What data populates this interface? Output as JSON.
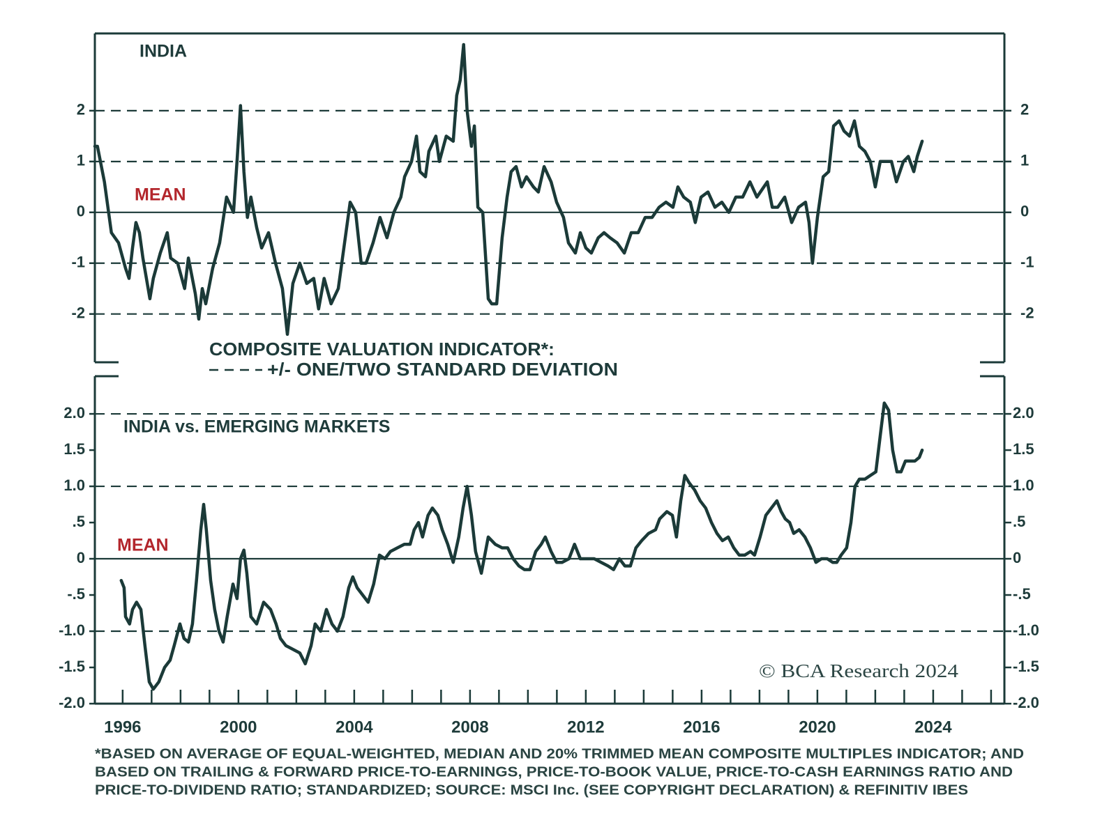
{
  "chart_data": [
    {
      "type": "line",
      "title": "INDIA",
      "mean_label": "MEAN",
      "mean_line": 0,
      "mean_color": "#b3262c",
      "color": "#1b3a38",
      "xlim": [
        1995.04,
        2026.46
      ],
      "ylim": [
        -2.95,
        3.52
      ],
      "yticks": [
        2,
        1,
        0,
        -1,
        -2
      ],
      "std_lines": [
        2,
        1,
        -1,
        -2
      ],
      "x": [
        1995.04,
        1995.13,
        1995.37,
        1995.49,
        1995.61,
        1995.86,
        1996.1,
        1996.22,
        1996.34,
        1996.46,
        1996.58,
        1996.7,
        1996.94,
        1997.06,
        1997.3,
        1997.54,
        1997.66,
        1997.9,
        1998.14,
        1998.27,
        1998.51,
        1998.63,
        1998.75,
        1998.87,
        1999.11,
        1999.35,
        1999.59,
        1999.83,
        1999.95,
        2000.07,
        2000.19,
        2000.31,
        2000.43,
        2000.63,
        2000.8,
        2001.04,
        2001.28,
        2001.52,
        2001.69,
        2001.88,
        2002.12,
        2002.36,
        2002.6,
        2002.77,
        2002.96,
        2003.2,
        2003.45,
        2003.69,
        2003.86,
        2004.05,
        2004.24,
        2004.41,
        2004.65,
        2004.89,
        2005.13,
        2005.37,
        2005.61,
        2005.74,
        2005.98,
        2006.15,
        2006.27,
        2006.46,
        2006.58,
        2006.82,
        2006.94,
        2007.18,
        2007.42,
        2007.54,
        2007.66,
        2007.78,
        2007.9,
        2008.05,
        2008.15,
        2008.27,
        2008.44,
        2008.63,
        2008.75,
        2008.92,
        2009.11,
        2009.28,
        2009.42,
        2009.59,
        2009.78,
        2009.95,
        2010.19,
        2010.36,
        2010.56,
        2010.8,
        2010.99,
        2011.23,
        2011.4,
        2011.64,
        2011.81,
        2012.0,
        2012.19,
        2012.43,
        2012.63,
        2012.84,
        2013.08,
        2013.33,
        2013.57,
        2013.81,
        2014.05,
        2014.29,
        2014.53,
        2014.77,
        2015.01,
        2015.18,
        2015.38,
        2015.61,
        2015.78,
        2015.98,
        2016.22,
        2016.46,
        2016.7,
        2016.94,
        2017.18,
        2017.42,
        2017.67,
        2017.91,
        2018.15,
        2018.27,
        2018.44,
        2018.63,
        2018.87,
        2019.11,
        2019.35,
        2019.59,
        2019.71,
        2019.83,
        2020.0,
        2020.2,
        2020.39,
        2020.56,
        2020.75,
        2020.92,
        2021.11,
        2021.28,
        2021.45,
        2021.64,
        2021.83,
        2022.0,
        2022.17,
        2022.37,
        2022.56,
        2022.73,
        2022.97,
        2023.14,
        2023.33,
        2023.45,
        2023.62
      ],
      "values": [
        1.3,
        1.3,
        0.6,
        0.1,
        -0.4,
        -0.6,
        -1.1,
        -1.3,
        -0.7,
        -0.2,
        -0.4,
        -0.9,
        -1.7,
        -1.3,
        -0.8,
        -0.4,
        -0.9,
        -1.0,
        -1.5,
        -0.9,
        -1.6,
        -2.1,
        -1.5,
        -1.8,
        -1.1,
        -0.6,
        0.3,
        0.0,
        1.0,
        2.1,
        0.8,
        -0.1,
        0.3,
        -0.3,
        -0.7,
        -0.4,
        -1.0,
        -1.5,
        -2.4,
        -1.4,
        -1.0,
        -1.4,
        -1.3,
        -1.9,
        -1.3,
        -1.8,
        -1.5,
        -0.5,
        0.2,
        0.0,
        -1.0,
        -1.0,
        -0.6,
        -0.1,
        -0.5,
        0.0,
        0.3,
        0.7,
        1.0,
        1.5,
        0.8,
        0.7,
        1.2,
        1.5,
        1.0,
        1.5,
        1.4,
        2.3,
        2.6,
        3.3,
        2.0,
        1.3,
        1.7,
        0.1,
        0.0,
        -1.7,
        -1.8,
        -1.8,
        -0.5,
        0.3,
        0.8,
        0.9,
        0.5,
        0.7,
        0.5,
        0.4,
        0.9,
        0.6,
        0.2,
        -0.1,
        -0.6,
        -0.8,
        -0.4,
        -0.7,
        -0.8,
        -0.5,
        -0.4,
        -0.5,
        -0.6,
        -0.8,
        -0.4,
        -0.4,
        -0.1,
        -0.1,
        0.1,
        0.2,
        0.1,
        0.5,
        0.3,
        0.2,
        -0.2,
        0.3,
        0.4,
        0.1,
        0.2,
        0.0,
        0.3,
        0.3,
        0.6,
        0.3,
        0.5,
        0.6,
        0.1,
        0.1,
        0.3,
        -0.2,
        0.1,
        0.2,
        -0.2,
        -1.0,
        -0.1,
        0.7,
        0.8,
        1.7,
        1.8,
        1.6,
        1.5,
        1.8,
        1.3,
        1.2,
        1.0,
        0.5,
        1.0,
        1.0,
        1.0,
        0.6,
        1.0,
        1.1,
        0.8,
        1.1,
        1.4
      ]
    },
    {
      "type": "line",
      "title": "INDIA vs. EMERGING MARKETS",
      "mean_label": "MEAN",
      "mean_line": 0,
      "mean_color": "#b3262c",
      "color": "#1b3a38",
      "xlim": [
        1995.04,
        2026.46
      ],
      "ylim": [
        -2.0,
        2.52
      ],
      "yticks": [
        {
          "value": 2,
          "label": "2.0"
        },
        1.5,
        {
          "value": 1,
          "label": "1.0"
        },
        {
          "value": 0.5,
          "label": ".5"
        },
        0,
        {
          "value": -0.5,
          "label": "-.5"
        },
        {
          "value": -1,
          "label": "-1.0"
        },
        -1.5,
        {
          "value": -2,
          "label": "-2.0"
        }
      ],
      "std_lines": [
        2,
        1,
        -1
      ],
      "xticks": [
        1996,
        2000,
        2004,
        2008,
        2012,
        2016,
        2020,
        2024
      ],
      "xminorticks": [
        1996,
        1997,
        1998,
        1999,
        2000,
        2001,
        2002,
        2003,
        2004,
        2005,
        2006,
        2007,
        2008,
        2009,
        2010,
        2011,
        2012,
        2013,
        2014,
        2015,
        2016,
        2017,
        2018,
        2019,
        2020,
        2021,
        2022,
        2023,
        2024,
        2025,
        2026
      ],
      "x": [
        1995.95,
        1996.05,
        1996.1,
        1996.24,
        1996.34,
        1996.48,
        1996.63,
        1996.77,
        1996.92,
        1997.06,
        1997.25,
        1997.45,
        1997.64,
        1997.78,
        1997.98,
        1998.12,
        1998.27,
        1998.41,
        1998.55,
        1998.7,
        1998.8,
        1998.89,
        1999.04,
        1999.18,
        1999.33,
        1999.47,
        1999.61,
        1999.81,
        1999.95,
        2000.07,
        2000.19,
        2000.29,
        2000.43,
        2000.63,
        2000.87,
        2001.11,
        2001.3,
        2001.45,
        2001.64,
        2001.88,
        2002.12,
        2002.31,
        2002.51,
        2002.65,
        2002.84,
        2003.04,
        2003.23,
        2003.42,
        2003.61,
        2003.81,
        2003.95,
        2004.1,
        2004.29,
        2004.48,
        2004.67,
        2004.87,
        2005.06,
        2005.25,
        2005.49,
        2005.73,
        2005.93,
        2006.07,
        2006.22,
        2006.36,
        2006.55,
        2006.7,
        2006.89,
        2007.04,
        2007.23,
        2007.42,
        2007.61,
        2007.76,
        2007.9,
        2008.05,
        2008.19,
        2008.39,
        2008.63,
        2008.87,
        2009.11,
        2009.3,
        2009.49,
        2009.69,
        2009.88,
        2010.07,
        2010.27,
        2010.46,
        2010.6,
        2010.8,
        2010.99,
        2011.18,
        2011.42,
        2011.61,
        2011.81,
        2012.05,
        2012.29,
        2012.53,
        2012.77,
        2012.96,
        2013.16,
        2013.35,
        2013.54,
        2013.73,
        2013.93,
        2014.17,
        2014.41,
        2014.55,
        2014.8,
        2014.99,
        2015.13,
        2015.28,
        2015.42,
        2015.57,
        2015.76,
        2015.95,
        2016.14,
        2016.34,
        2016.53,
        2016.72,
        2016.92,
        2017.11,
        2017.3,
        2017.49,
        2017.69,
        2017.83,
        2018.02,
        2018.22,
        2018.41,
        2018.6,
        2018.75,
        2018.89,
        2019.04,
        2019.18,
        2019.37,
        2019.57,
        2019.76,
        2019.95,
        2020.14,
        2020.34,
        2020.53,
        2020.67,
        2020.82,
        2021.01,
        2021.16,
        2021.3,
        2021.45,
        2021.64,
        2021.83,
        2022.02,
        2022.17,
        2022.31,
        2022.46,
        2022.6,
        2022.75,
        2022.89,
        2023.04,
        2023.18,
        2023.37,
        2023.52,
        2023.62
      ],
      "values": [
        -0.3,
        -0.4,
        -0.8,
        -0.9,
        -0.7,
        -0.6,
        -0.7,
        -1.2,
        -1.7,
        -1.8,
        -1.7,
        -1.5,
        -1.4,
        -1.2,
        -0.9,
        -1.1,
        -1.15,
        -0.9,
        -0.3,
        0.4,
        0.75,
        0.4,
        -0.3,
        -0.7,
        -1.0,
        -1.15,
        -0.8,
        -0.35,
        -0.55,
        0.0,
        0.12,
        -0.2,
        -0.8,
        -0.9,
        -0.6,
        -0.7,
        -0.9,
        -1.1,
        -1.2,
        -1.25,
        -1.3,
        -1.45,
        -1.2,
        -0.9,
        -1.0,
        -0.7,
        -0.9,
        -1.0,
        -0.8,
        -0.4,
        -0.25,
        -0.4,
        -0.5,
        -0.6,
        -0.35,
        0.05,
        0.0,
        0.1,
        0.15,
        0.2,
        0.2,
        0.4,
        0.5,
        0.3,
        0.6,
        0.7,
        0.6,
        0.4,
        0.2,
        -0.05,
        0.3,
        0.7,
        1.0,
        0.6,
        0.1,
        -0.2,
        0.3,
        0.2,
        0.15,
        0.15,
        0.0,
        -0.1,
        -0.15,
        -0.15,
        0.1,
        0.2,
        0.3,
        0.1,
        -0.05,
        -0.05,
        0.0,
        0.2,
        0.0,
        0.0,
        0.0,
        -0.05,
        -0.1,
        -0.15,
        0.0,
        -0.1,
        -0.1,
        0.15,
        0.25,
        0.35,
        0.4,
        0.55,
        0.65,
        0.6,
        0.3,
        0.8,
        1.15,
        1.05,
        0.95,
        0.8,
        0.7,
        0.5,
        0.35,
        0.25,
        0.3,
        0.15,
        0.05,
        0.05,
        0.1,
        0.05,
        0.3,
        0.6,
        0.7,
        0.8,
        0.65,
        0.55,
        0.5,
        0.35,
        0.4,
        0.3,
        0.15,
        -0.05,
        0.0,
        0.0,
        -0.05,
        -0.05,
        0.05,
        0.15,
        0.5,
        1.0,
        1.1,
        1.1,
        1.15,
        1.2,
        1.7,
        2.15,
        2.05,
        1.5,
        1.2,
        1.2,
        1.35,
        1.35,
        1.35,
        1.4,
        1.5
      ]
    }
  ],
  "legend": {
    "title": "COMPOSITE VALUATION INDICATOR*:",
    "label": "+/- ONE/TWO STANDARD DEVIATION"
  },
  "copyright": "© BCA Research 2024",
  "footnote": [
    "*BASED ON AVERAGE OF EQUAL-WEIGHTED, MEDIAN AND 20% TRIMMED MEAN COMPOSITE MULTIPLES INDICATOR; AND",
    "BASED ON TRAILING & FORWARD PRICE-TO-EARNINGS, PRICE-TO-BOOK VALUE, PRICE-TO-CASH EARNINGS RATIO AND",
    "PRICE-TO-DIVIDEND RATIO; STANDARDIZED; SOURCE: MSCI Inc. (SEE COPYRIGHT DECLARATION) & REFINITIV IBES"
  ]
}
